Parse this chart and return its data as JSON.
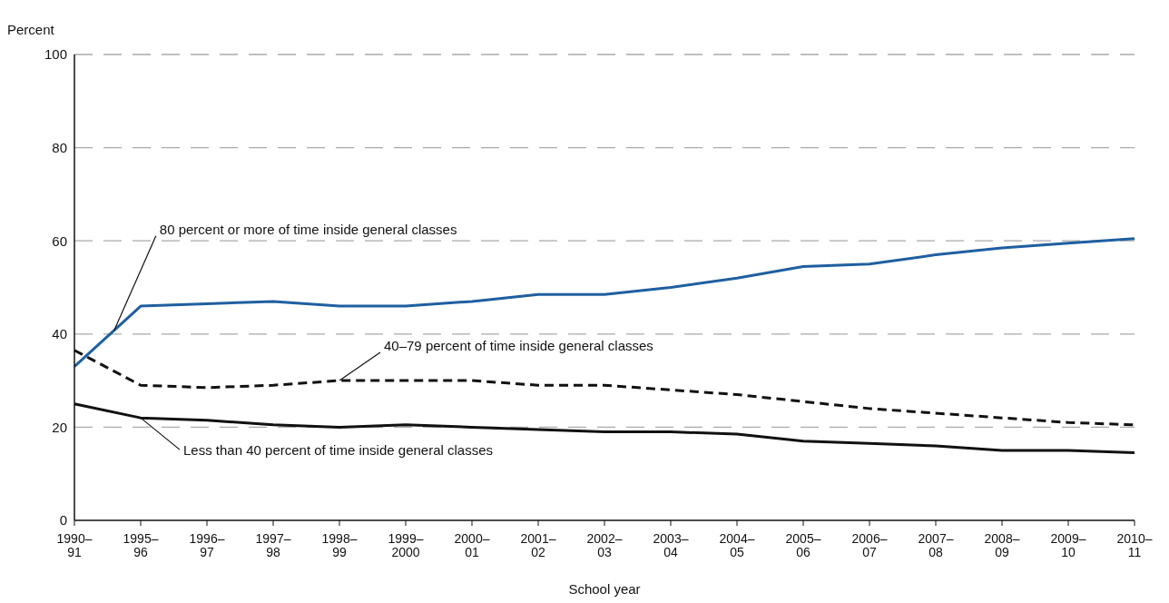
{
  "chart_data": {
    "type": "line",
    "xlabel": "School year",
    "ylabel": "Percent",
    "categories": [
      "1990–91",
      "1995–96",
      "1996–97",
      "1997–98",
      "1998–99",
      "1999–2000",
      "2000–01",
      "2001–02",
      "2002–03",
      "2003–04",
      "2004–05",
      "2005–06",
      "2006–07",
      "2007–08",
      "2008–09",
      "2009–10",
      "2010–11"
    ],
    "series": [
      {
        "name": "80 percent or more of time inside general classes",
        "color": "#1f5fa0",
        "line_style": "solid",
        "values": [
          33,
          46,
          46.5,
          47,
          46,
          46,
          47,
          48.5,
          48.5,
          50,
          52,
          54.5,
          55,
          57,
          58.5,
          59.5,
          60.5
        ]
      },
      {
        "name": "40–79 percent of time inside general classes",
        "color": "#111111",
        "line_style": "dashed",
        "values": [
          36.5,
          29,
          28.5,
          29,
          30,
          30,
          30,
          29,
          29,
          28,
          27,
          25.5,
          24,
          23,
          22,
          21,
          20.5
        ]
      },
      {
        "name": "Less than 40 percent of time inside general classes",
        "color": "#111111",
        "line_style": "solid",
        "values": [
          25,
          22,
          21.5,
          20.5,
          20,
          20.5,
          20,
          19.5,
          19,
          19,
          18.5,
          17,
          16.5,
          16,
          15,
          15,
          14.5
        ]
      }
    ],
    "ylim": [
      0,
      100
    ],
    "yticks": [
      0,
      20,
      40,
      60,
      80,
      100
    ],
    "grid": "y",
    "legend": false,
    "marker": "none"
  }
}
